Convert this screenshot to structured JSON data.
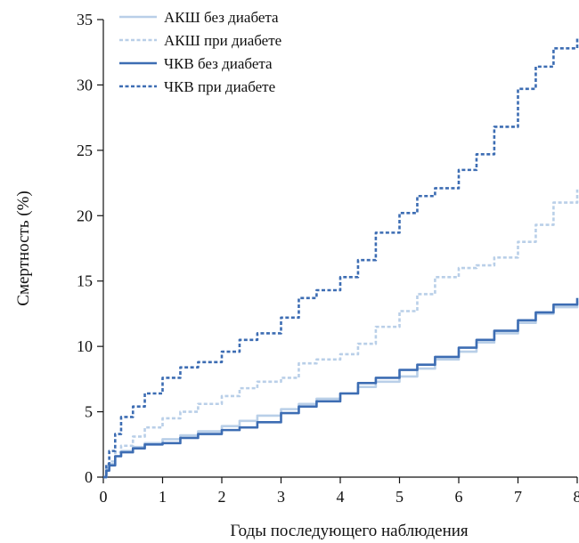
{
  "chart_data": {
    "type": "line",
    "title": "",
    "xlabel": "Годы последующего наблюдения",
    "ylabel": "Смертность (%)",
    "xlim": [
      0,
      8
    ],
    "ylim": [
      0,
      35
    ],
    "x_ticks": [
      0,
      1,
      2,
      3,
      4,
      5,
      6,
      7,
      8
    ],
    "x_tick_labels": [
      "0",
      "1",
      "2",
      "3",
      "4",
      "5",
      "6",
      "7",
      "8"
    ],
    "y_ticks": [
      0,
      5,
      10,
      15,
      20,
      25,
      30,
      35
    ],
    "y_tick_labels": [
      "0",
      "5",
      "10",
      "15",
      "20",
      "25",
      "30",
      "35"
    ],
    "grid": false,
    "legend_position": "top-left",
    "step": true,
    "series": [
      {
        "name": "АКШ без диабета",
        "color": "#b9cfe8",
        "dash": "solid",
        "x": [
          0,
          0.05,
          0.1,
          0.2,
          0.3,
          0.5,
          0.7,
          1.0,
          1.3,
          1.6,
          2.0,
          2.3,
          2.6,
          3.0,
          3.3,
          3.6,
          4.0,
          4.3,
          4.6,
          5.0,
          5.3,
          5.6,
          6.0,
          6.3,
          6.6,
          7.0,
          7.3,
          7.6,
          8.0
        ],
        "values": [
          0,
          0.6,
          1.0,
          1.6,
          2.0,
          2.3,
          2.6,
          2.9,
          3.2,
          3.5,
          3.9,
          4.3,
          4.7,
          5.2,
          5.6,
          6.0,
          6.4,
          6.9,
          7.3,
          7.7,
          8.3,
          9.0,
          9.6,
          10.3,
          11.0,
          11.8,
          12.5,
          13.0,
          13.5
        ]
      },
      {
        "name": "АКШ при диабете",
        "color": "#b9cfe8",
        "dash": "dashed",
        "x": [
          0,
          0.05,
          0.1,
          0.2,
          0.3,
          0.5,
          0.7,
          1.0,
          1.3,
          1.6,
          2.0,
          2.3,
          2.6,
          3.0,
          3.3,
          3.6,
          4.0,
          4.3,
          4.6,
          5.0,
          5.3,
          5.6,
          6.0,
          6.3,
          6.6,
          7.0,
          7.3,
          7.6,
          8.0
        ],
        "values": [
          0,
          0.7,
          1.2,
          1.9,
          2.4,
          3.1,
          3.8,
          4.5,
          5.0,
          5.6,
          6.2,
          6.8,
          7.3,
          7.6,
          8.7,
          9.0,
          9.4,
          10.2,
          11.5,
          12.7,
          14.0,
          15.3,
          16.0,
          16.2,
          16.8,
          18.0,
          19.3,
          21.0,
          22.0
        ]
      },
      {
        "name": "ЧКВ без диабета",
        "color": "#3d6db3",
        "dash": "solid",
        "x": [
          0,
          0.05,
          0.1,
          0.2,
          0.3,
          0.5,
          0.7,
          1.0,
          1.3,
          1.6,
          2.0,
          2.3,
          2.6,
          3.0,
          3.3,
          3.6,
          4.0,
          4.3,
          4.6,
          5.0,
          5.3,
          5.6,
          6.0,
          6.3,
          6.6,
          7.0,
          7.3,
          7.6,
          8.0
        ],
        "values": [
          0,
          0.5,
          0.9,
          1.6,
          1.9,
          2.2,
          2.5,
          2.6,
          3.0,
          3.3,
          3.6,
          3.8,
          4.2,
          4.9,
          5.4,
          5.8,
          6.4,
          7.2,
          7.6,
          8.2,
          8.6,
          9.2,
          9.9,
          10.5,
          11.2,
          12.0,
          12.6,
          13.2,
          13.7
        ]
      },
      {
        "name": "ЧКВ при диабете",
        "color": "#3d6db3",
        "dash": "dashed",
        "x": [
          0,
          0.05,
          0.1,
          0.2,
          0.3,
          0.5,
          0.7,
          1.0,
          1.3,
          1.6,
          2.0,
          2.3,
          2.6,
          3.0,
          3.3,
          3.6,
          4.0,
          4.3,
          4.6,
          5.0,
          5.3,
          5.6,
          6.0,
          6.3,
          6.6,
          7.0,
          7.3,
          7.6,
          8.0
        ],
        "values": [
          0,
          1.0,
          2.0,
          3.3,
          4.6,
          5.4,
          6.4,
          7.6,
          8.4,
          8.8,
          9.6,
          10.5,
          11.0,
          12.2,
          13.7,
          14.3,
          15.3,
          16.6,
          18.7,
          20.2,
          21.5,
          22.1,
          23.5,
          24.7,
          26.8,
          29.7,
          31.4,
          32.8,
          33.7
        ]
      }
    ]
  }
}
